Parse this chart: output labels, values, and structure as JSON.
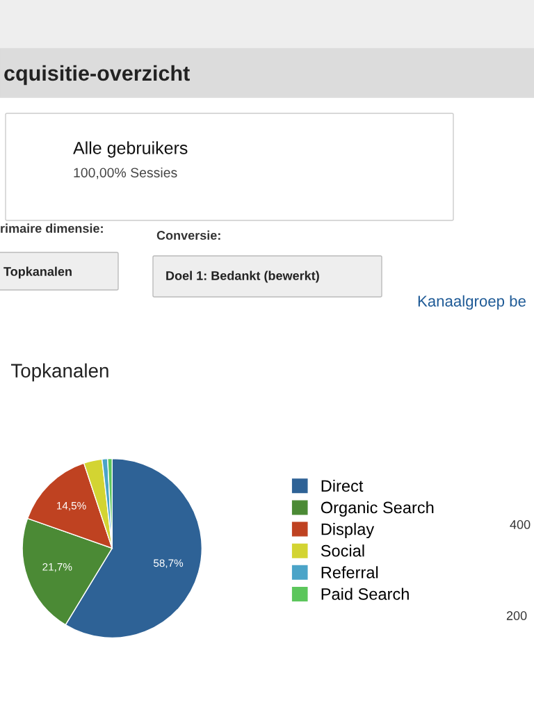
{
  "chart_data": {
    "type": "pie",
    "title": "Topkanalen",
    "categories": [
      "Direct",
      "Organic Search",
      "Display",
      "Social",
      "Referral",
      "Paid Search"
    ],
    "values": [
      58.7,
      21.7,
      14.5,
      3.3,
      1.0,
      0.8
    ],
    "colors": [
      "#2e6296",
      "#4b8a35",
      "#bf4221",
      "#d3d432",
      "#4ba4c8",
      "#5cc65c"
    ],
    "value_labels": [
      "58,7%",
      "21,7%",
      "14,5%",
      null,
      null,
      null
    ],
    "legend": "right",
    "annotations": [
      "cquisitie-overzicht",
      "Alle gebruikers",
      "100,00% Sessies",
      "rimaire dimensie:",
      "Topkanalen",
      "Conversie:",
      "Doel 1: Bedankt (bewerkt)",
      "Kanaalgroep be",
      "400",
      "200"
    ]
  }
}
